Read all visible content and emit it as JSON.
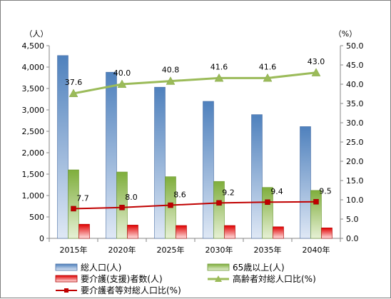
{
  "chart_data": {
    "type": "bar",
    "categories": [
      "2015年",
      "2020年",
      "2025年",
      "2030年",
      "2035年",
      "2040年"
    ],
    "y_left": {
      "unit": "（人）",
      "range": [
        0,
        4500
      ],
      "ticks": [
        "0",
        "500",
        "1,000",
        "1,500",
        "2,000",
        "2,500",
        "3,000",
        "3,500",
        "4,000",
        "4,500"
      ]
    },
    "y_right": {
      "unit": "（%）",
      "range": [
        0,
        50
      ],
      "ticks": [
        "0.0",
        "5.0",
        "10.0",
        "15.0",
        "20.0",
        "25.0",
        "30.0",
        "35.0",
        "40.0",
        "45.0",
        "50.0"
      ]
    },
    "series": [
      {
        "name": "総人口(人)",
        "type": "bar",
        "axis": "left",
        "color": "#4f81bd",
        "values": [
          4270,
          3880,
          3530,
          3200,
          2890,
          2610
        ]
      },
      {
        "name": "65歳以上(人)",
        "type": "bar",
        "axis": "left",
        "color": "#9bbb59",
        "values": [
          1600,
          1550,
          1440,
          1330,
          1190,
          1120
        ]
      },
      {
        "name": "要介護(支援)者数(人)",
        "type": "bar",
        "axis": "left",
        "color": "#e00000",
        "values": [
          330,
          310,
          300,
          300,
          270,
          245
        ]
      },
      {
        "name": "高齢者対総人口比(%)",
        "type": "line",
        "axis": "right",
        "color": "#9bbb59",
        "marker": "triangle",
        "values": [
          37.6,
          40.0,
          40.8,
          41.6,
          41.6,
          43.0
        ],
        "labels": [
          "37.6",
          "40.0",
          "40.8",
          "41.6",
          "41.6",
          "43.0"
        ]
      },
      {
        "name": "要介護者等対総人口比(%)",
        "type": "line",
        "axis": "right",
        "color": "#c00000",
        "marker": "square",
        "values": [
          7.7,
          8.0,
          8.6,
          9.2,
          9.4,
          9.5
        ],
        "labels": [
          "7.7",
          "8.0",
          "8.6",
          "9.2",
          "9.4",
          "9.5"
        ]
      }
    ],
    "legend": "bottom",
    "grid": false
  }
}
